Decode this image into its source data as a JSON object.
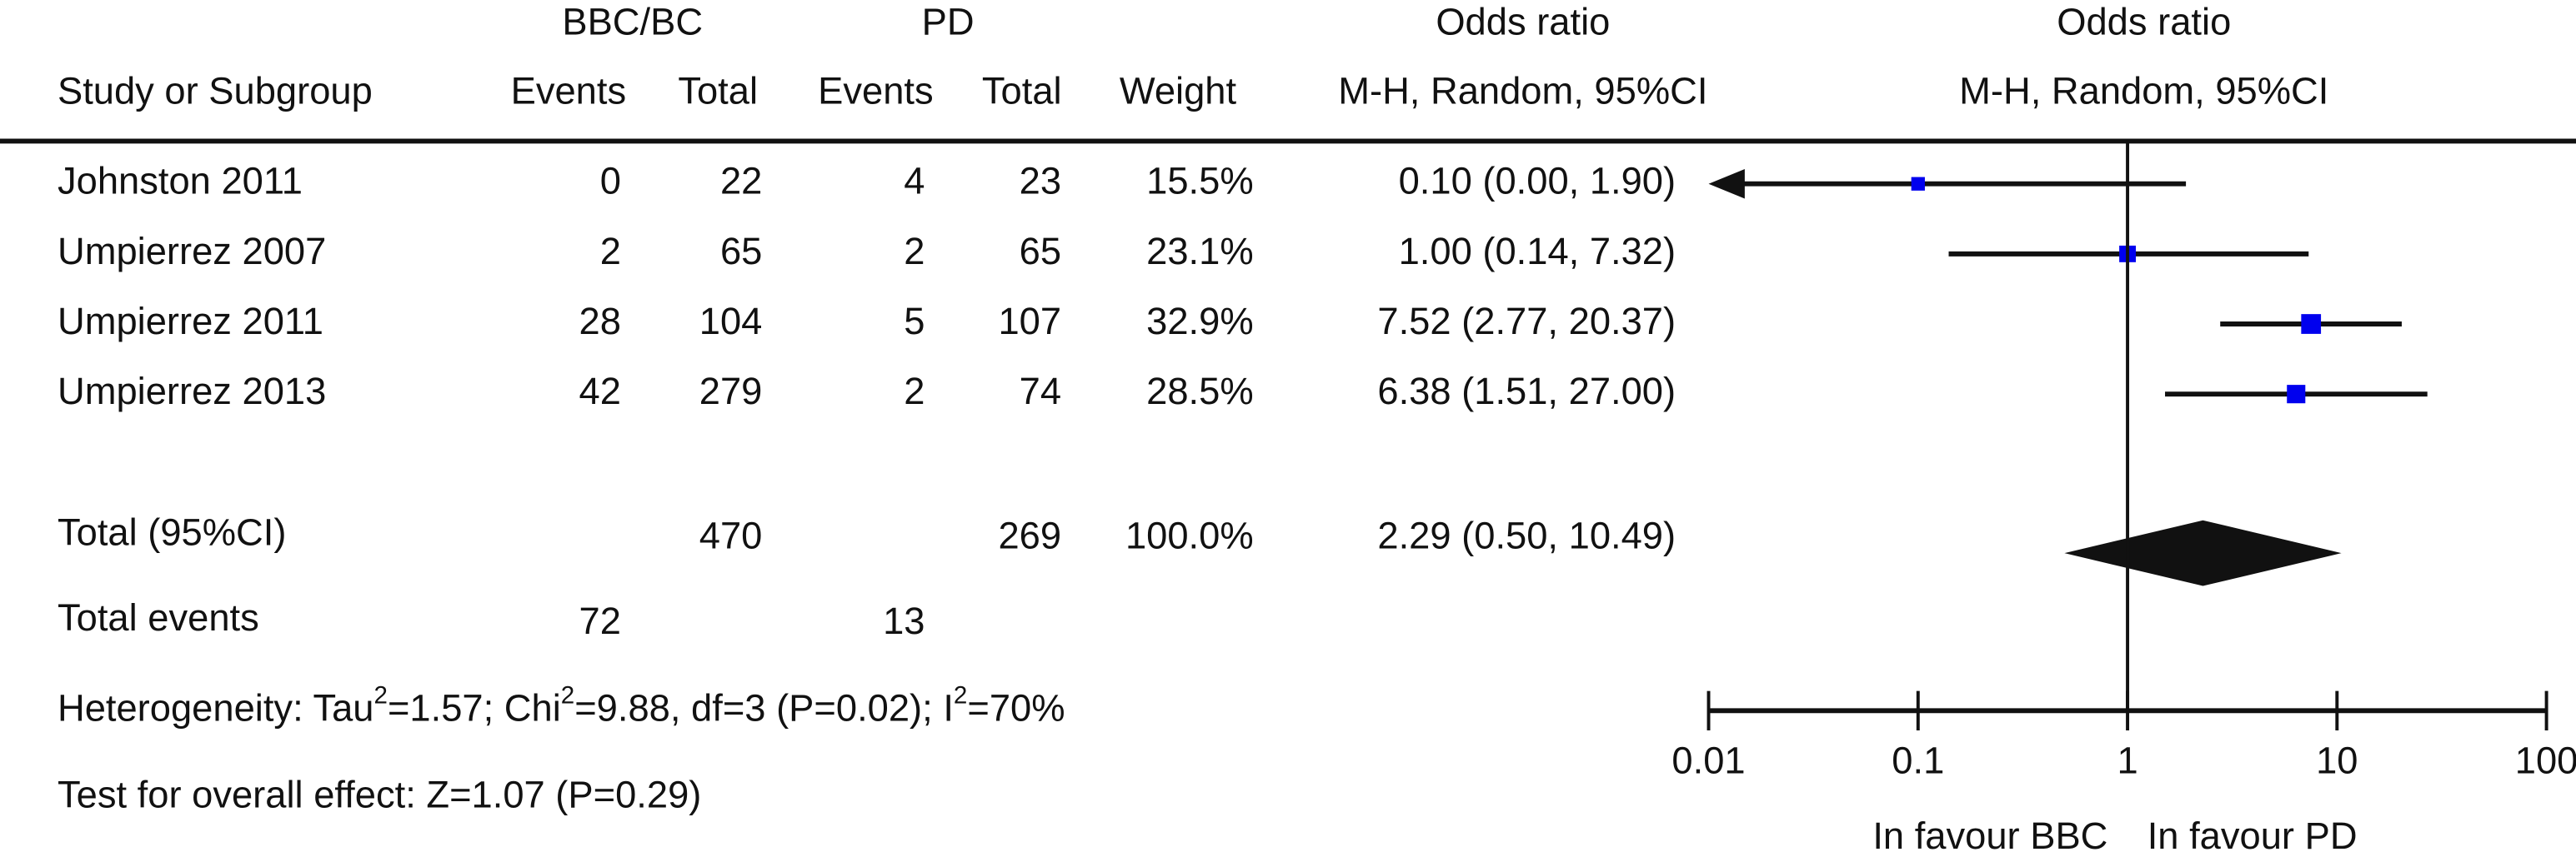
{
  "chart_data": {
    "type": "forest",
    "header": {
      "group1": "BBC/BC",
      "group2": "PD",
      "col_or": "Odds ratio",
      "plot_or": "Odds ratio",
      "study": "Study or Subgroup",
      "events1": "Events",
      "total1": "Total",
      "events2": "Events",
      "total2": "Total",
      "weight": "Weight",
      "method": "M-H, Random, 95%CI",
      "plot_method": "M-H, Random, 95%CI"
    },
    "studies": [
      {
        "name": "Johnston 2011",
        "events1": 0,
        "total1": 22,
        "events2": 4,
        "total2": 23,
        "weight": 15.5,
        "weight_label": "15.5%",
        "or": 0.1,
        "lo": 0.0,
        "hi": 1.9,
        "ci_label": "0.10 (0.00, 1.90)"
      },
      {
        "name": "Umpierrez 2007",
        "events1": 2,
        "total1": 65,
        "events2": 2,
        "total2": 65,
        "weight": 23.1,
        "weight_label": "23.1%",
        "or": 1.0,
        "lo": 0.14,
        "hi": 7.32,
        "ci_label": "1.00 (0.14, 7.32)"
      },
      {
        "name": "Umpierrez 2011",
        "events1": 28,
        "total1": 104,
        "events2": 5,
        "total2": 107,
        "weight": 32.9,
        "weight_label": "32.9%",
        "or": 7.52,
        "lo": 2.77,
        "hi": 20.37,
        "ci_label": "7.52 (2.77, 20.37)"
      },
      {
        "name": "Umpierrez 2013",
        "events1": 42,
        "total1": 279,
        "events2": 2,
        "total2": 74,
        "weight": 28.5,
        "weight_label": "28.5%",
        "or": 6.38,
        "lo": 1.51,
        "hi": 27.0,
        "ci_label": "6.38 (1.51, 27.00)"
      }
    ],
    "total": {
      "name": "Total (95%CI)",
      "total1": 470,
      "total2": 269,
      "weight_label": "100.0%",
      "or": 2.29,
      "lo": 0.5,
      "hi": 10.49,
      "ci_label": "2.29 (0.50, 10.49)"
    },
    "total_events": {
      "name": "Total events",
      "events1": 72,
      "events2": 13
    },
    "heterogeneity": [
      "Heterogeneity: Tau",
      "2",
      "=1.57; Chi",
      "2",
      "=9.88, df=3 (P=0.02); I",
      "2",
      "=70%"
    ],
    "overall_effect": "Test for overall effect: Z=1.07 (P=0.29)",
    "xlim": [
      0.01,
      100
    ],
    "xticks": [
      0.01,
      0.1,
      1,
      10,
      100
    ],
    "log_x": true,
    "color": "#0000ee",
    "favour_left": "In favour BBC",
    "favour_right": "In favour PD"
  }
}
